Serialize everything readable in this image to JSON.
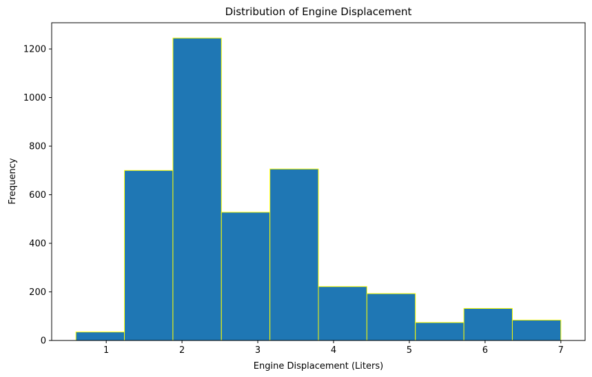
{
  "chart_data": {
    "type": "bar",
    "subtype": "histogram",
    "title": "Distribution of Engine Displacement",
    "xlabel": "Engine Displacement (Liters)",
    "ylabel": "Frequency",
    "bins": [
      {
        "x0": 0.6,
        "x1": 1.24,
        "value": 35
      },
      {
        "x0": 1.24,
        "x1": 1.88,
        "value": 700
      },
      {
        "x0": 1.88,
        "x1": 2.52,
        "value": 1245
      },
      {
        "x0": 2.52,
        "x1": 3.16,
        "value": 528
      },
      {
        "x0": 3.16,
        "x1": 3.8,
        "value": 706
      },
      {
        "x0": 3.8,
        "x1": 4.44,
        "value": 222
      },
      {
        "x0": 4.44,
        "x1": 5.08,
        "value": 193
      },
      {
        "x0": 5.08,
        "x1": 5.72,
        "value": 74
      },
      {
        "x0": 5.72,
        "x1": 6.36,
        "value": 132
      },
      {
        "x0": 6.36,
        "x1": 7.0,
        "value": 84
      }
    ],
    "xlim": [
      0.28,
      7.32
    ],
    "ylim": [
      0,
      1308
    ],
    "xticks": [
      1,
      2,
      3,
      4,
      5,
      6,
      7
    ],
    "yticks": [
      0,
      200,
      400,
      600,
      800,
      1000,
      1200
    ],
    "bar_color": "#1f77b4",
    "edge_color": "#ffff00",
    "grid": false,
    "legend": false
  }
}
